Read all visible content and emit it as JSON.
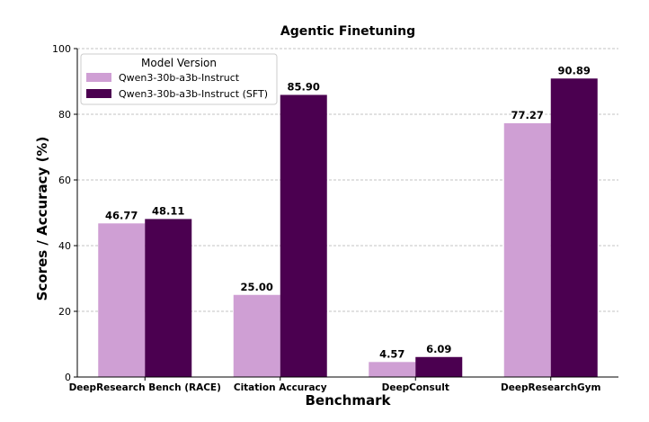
{
  "chart_data": {
    "type": "bar",
    "title": "Agentic Finetuning",
    "xlabel": "Benchmark",
    "ylabel": "Scores / Accuracy (%)",
    "ylim": [
      0,
      100
    ],
    "yticks": [
      0,
      20,
      40,
      60,
      80,
      100
    ],
    "grid": "horizontal-dashed",
    "legend": {
      "title": "Model Version",
      "placement": "top-left"
    },
    "categories": [
      "DeepResearch Bench (RACE)",
      "Citation Accuracy",
      "DeepConsult",
      "DeepResearchGym"
    ],
    "series": [
      {
        "name": "Qwen3-30b-a3b-Instruct",
        "color": "#cf9fd4",
        "values": [
          46.77,
          25.0,
          4.57,
          77.27
        ],
        "labels": [
          "46.77",
          "25.00",
          "4.57",
          "77.27"
        ]
      },
      {
        "name": "Qwen3-30b-a3b-Instruct (SFT)",
        "color": "#4b0050",
        "values": [
          48.11,
          85.9,
          6.09,
          90.89
        ],
        "labels": [
          "48.11",
          "85.90",
          "6.09",
          "90.89"
        ]
      }
    ]
  }
}
